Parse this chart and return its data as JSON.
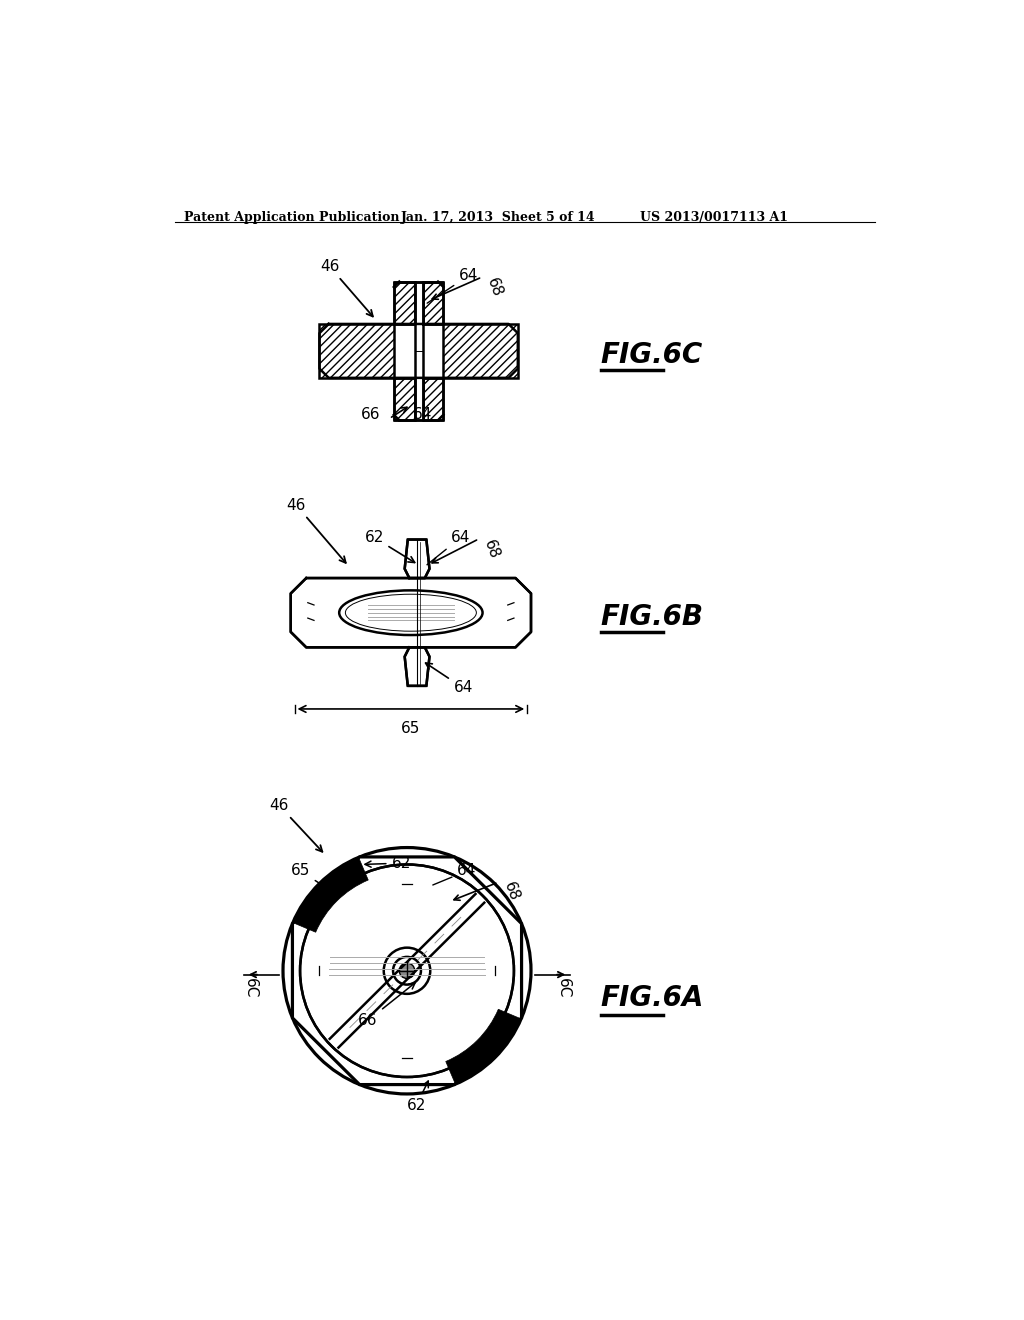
{
  "bg_color": "#ffffff",
  "line_color": "#000000",
  "header_left": "Patent Application Publication",
  "header_mid": "Jan. 17, 2013  Sheet 5 of 14",
  "header_right": "US 2013/0017113 A1",
  "fig6c_label": "FIG.6C",
  "fig6b_label": "FIG.6B",
  "fig6a_label": "FIG.6A"
}
